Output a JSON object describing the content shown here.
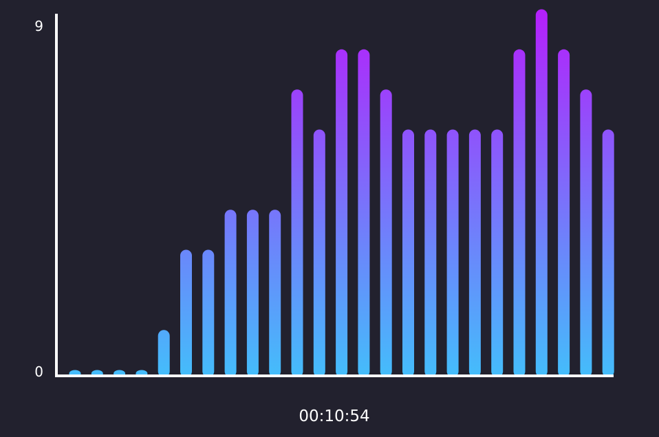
{
  "chart_data": {
    "type": "bar",
    "title": "",
    "xlabel": "",
    "ylabel": "",
    "ylim": [
      0,
      9
    ],
    "y_ticks": [
      "0",
      "9"
    ],
    "timer": "00:10:54",
    "grid": false,
    "legend": "none",
    "values": [
      0,
      0,
      0,
      0,
      1,
      3,
      3,
      4,
      4,
      4,
      7,
      6,
      8,
      8,
      7,
      6,
      6,
      6,
      6,
      6,
      8,
      9,
      8,
      7,
      6
    ],
    "colors": {
      "bar_top": "#b321fb",
      "bar_bottom": "#44bdfb",
      "axis": "#ffffff",
      "background": "#22212e"
    }
  }
}
